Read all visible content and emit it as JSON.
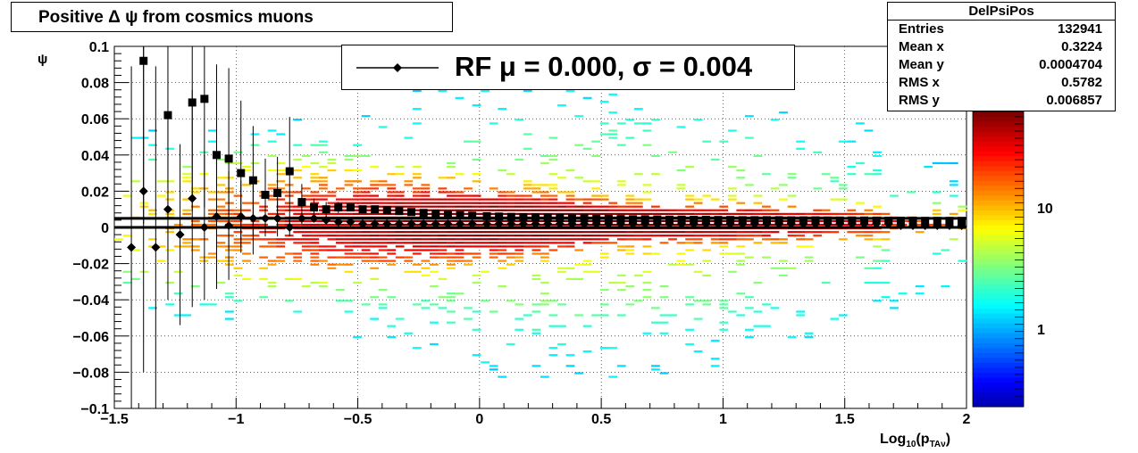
{
  "title": "Positive Δ ψ from cosmics muons",
  "stats": {
    "name": "DelPsiPos",
    "rows": [
      {
        "key": "Entries",
        "value": "132941"
      },
      {
        "key": "Mean x",
        "value": "0.3224"
      },
      {
        "key": "Mean y",
        "value": "0.0004704"
      },
      {
        "key": "RMS x",
        "value": "0.5782"
      },
      {
        "key": "RMS y",
        "value": "0.006857"
      }
    ]
  },
  "legend": {
    "text": "RF μ =  0.000, σ =   0.004"
  },
  "colors": {
    "profile_markers": "#000000",
    "fit_line": "#000000"
  },
  "chart_data": {
    "type": "heatmap",
    "title": "Positive Δ ψ from cosmics muons",
    "xlabel": "Log10(pTAν)",
    "ylabel": "ψ",
    "xlim": [
      -1.5,
      2
    ],
    "ylim": [
      -0.1,
      0.1
    ],
    "x_ticks": [
      "−1.5",
      "−1",
      "−0.5",
      "0",
      "0.5",
      "1",
      "1.5",
      "2"
    ],
    "y_ticks": [
      "−0.1",
      "−0.08",
      "−0.06",
      "−0.04",
      "−0.02",
      "0",
      "0.02",
      "0.04",
      "0.06",
      "0.08",
      "0.1"
    ],
    "colorbar_ticks": [
      "1",
      "10"
    ],
    "colorbar_scale": "log",
    "grid": true,
    "series": [
      {
        "marker": "square",
        "x": [
          -1.38,
          -1.28,
          -1.18,
          -1.13,
          -1.08,
          -1.03,
          -0.98,
          -0.93,
          -0.88,
          -0.83,
          -0.78,
          -0.73,
          -0.68,
          -0.63,
          -0.58,
          -0.53,
          -0.48,
          -0.43,
          -0.38,
          -0.33,
          -0.28,
          -0.23,
          -0.18,
          -0.13,
          -0.08,
          -0.03,
          0.03,
          0.08,
          0.13,
          0.18,
          0.23,
          0.28,
          0.33,
          0.38,
          0.43,
          0.48,
          0.53,
          0.58,
          0.63,
          0.68,
          0.73,
          0.78,
          0.83,
          0.88,
          0.93,
          0.98,
          1.03,
          1.08,
          1.13,
          1.18,
          1.23,
          1.28,
          1.33,
          1.38,
          1.43,
          1.48,
          1.53,
          1.58,
          1.63,
          1.68,
          1.73,
          1.78,
          1.83,
          1.88,
          1.93,
          1.98
        ],
        "y": [
          0.092,
          0.062,
          0.069,
          0.071,
          0.04,
          0.038,
          0.03,
          0.026,
          0.018,
          0.019,
          0.031,
          0.014,
          0.011,
          0.01,
          0.011,
          0.011,
          0.01,
          0.01,
          0.0095,
          0.009,
          0.0085,
          0.008,
          0.0075,
          0.007,
          0.0068,
          0.0065,
          0.0062,
          0.006,
          0.0058,
          0.0056,
          0.0055,
          0.0054,
          0.0052,
          0.005,
          0.005,
          0.0048,
          0.0047,
          0.0046,
          0.0045,
          0.0045,
          0.0044,
          0.0043,
          0.0043,
          0.0042,
          0.0042,
          0.0041,
          0.0041,
          0.004,
          0.004,
          0.004,
          0.004,
          0.0039,
          0.0039,
          0.0039,
          0.0038,
          0.0038,
          0.0038,
          0.0038,
          0.0037,
          0.0037,
          0.0037,
          0.0037,
          0.0036,
          0.0036,
          0.0036,
          0.0036
        ],
        "yerr": [
          0.09,
          0.08,
          0.06,
          0.06,
          0.05,
          0.05,
          0.04,
          0.03,
          0.02,
          0.02,
          0.03,
          0.01,
          0.005,
          0.004,
          0.003,
          0.002,
          0.002,
          0.002,
          0.001,
          0.001,
          0.001,
          0.001,
          0.001,
          0.001,
          0.001,
          0.001,
          0.001,
          0.001,
          0.001,
          0.001,
          0.001,
          0.001,
          0.001,
          0.001,
          0.001,
          0.001,
          0.001,
          0.001,
          0.001,
          0.001,
          0.001,
          0.001,
          0.001,
          0.001,
          0.001,
          0.001,
          0.001,
          0.001,
          0.001,
          0.001,
          0.001,
          0.001,
          0.001,
          0.001,
          0.001,
          0.001,
          0.001,
          0.001,
          0.001,
          0.001,
          0.001,
          0.001,
          0.001,
          0.001,
          0.001,
          0.001
        ]
      },
      {
        "marker": "diamond",
        "x": [
          -1.43,
          -1.38,
          -1.33,
          -1.28,
          -1.23,
          -1.18,
          -1.13,
          -1.08,
          -1.03,
          -0.98,
          -0.93,
          -0.88,
          -0.83,
          -0.78,
          -0.73,
          -0.68,
          -0.63,
          -0.58,
          -0.53,
          -0.48,
          -0.43,
          -0.38,
          -0.33,
          -0.28,
          -0.23,
          -0.18,
          -0.13,
          -0.08,
          -0.03,
          0.03,
          0.08,
          0.13,
          0.18,
          0.23,
          0.28,
          0.33,
          0.38,
          0.43,
          0.48,
          0.53,
          0.58,
          0.63,
          0.68,
          0.73,
          0.78,
          0.83,
          0.88,
          0.93,
          0.98,
          1.03,
          1.08,
          1.13,
          1.18,
          1.23,
          1.28,
          1.33,
          1.38,
          1.43,
          1.48,
          1.53,
          1.58,
          1.63,
          1.68,
          1.73,
          1.78,
          1.83,
          1.88,
          1.93,
          1.98
        ],
        "y": [
          -0.011,
          0.02,
          -0.011,
          0.01,
          -0.004,
          0.016,
          0.0,
          0.006,
          0.001,
          0.006,
          0.005,
          0.005,
          0.005,
          0.0,
          0.005,
          0.005,
          0.004,
          0.003,
          0.003,
          0.002,
          0.002,
          0.002,
          0.002,
          0.002,
          0.002,
          0.002,
          0.002,
          0.002,
          0.002,
          0.002,
          0.002,
          0.002,
          0.002,
          0.002,
          0.002,
          0.002,
          0.002,
          0.002,
          0.002,
          0.002,
          0.002,
          0.002,
          0.002,
          0.002,
          0.002,
          0.002,
          0.002,
          0.002,
          0.002,
          0.002,
          0.002,
          0.002,
          0.002,
          0.002,
          0.002,
          0.002,
          0.002,
          0.002,
          0.002,
          0.002,
          0.002,
          0.002,
          0.002,
          0.001,
          0.001,
          0.001,
          0.001,
          0.001,
          0.001
        ],
        "yerr": [
          0.1,
          0.1,
          0.1,
          0.05,
          0.05,
          0.06,
          0.04,
          0.04,
          0.03,
          0.02,
          0.02,
          0.01,
          0.01,
          0.005,
          0.003,
          0.002,
          0.002,
          0.001,
          0.001,
          0.001,
          0.001,
          0.001,
          0.001,
          0.001,
          0.001,
          0.001,
          0.001,
          0.001,
          0.001,
          0.001,
          0.001,
          0.001,
          0.001,
          0.001,
          0.001,
          0.001,
          0.001,
          0.001,
          0.001,
          0.001,
          0.001,
          0.001,
          0.001,
          0.001,
          0.001,
          0.001,
          0.001,
          0.001,
          0.001,
          0.001,
          0.001,
          0.001,
          0.001,
          0.001,
          0.001,
          0.001,
          0.001,
          0.001,
          0.001,
          0.001,
          0.001,
          0.001,
          0.001,
          0.001,
          0.001,
          0.001,
          0.001,
          0.001,
          0.001
        ]
      }
    ],
    "fit_lines": [
      {
        "x": [
          -1.5,
          2
        ],
        "y": [
          0.005,
          0.005
        ]
      },
      {
        "x": [
          -1.5,
          2
        ],
        "y": [
          0.0,
          0.0
        ]
      }
    ]
  }
}
